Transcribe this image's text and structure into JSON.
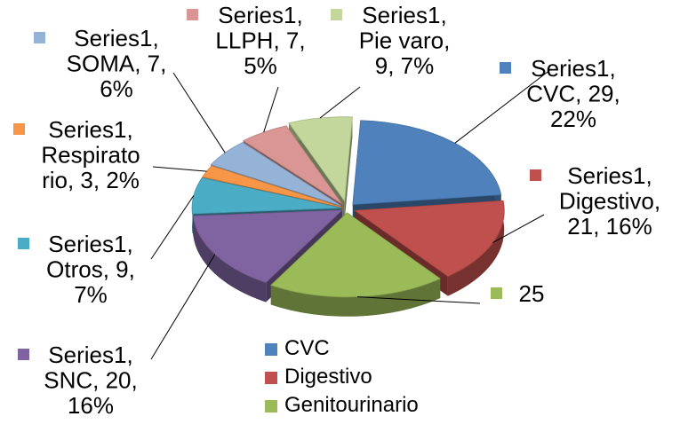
{
  "chart_data": {
    "type": "pie",
    "title": "",
    "series_name": "Series1",
    "slices": [
      {
        "category": "CVC",
        "value": 29,
        "percent": "22%",
        "color": "#4f81bd",
        "label_lines": [
          "Series1,",
          "CVC, 29,",
          "22%"
        ]
      },
      {
        "category": "Digestivo",
        "value": 21,
        "percent": "16%",
        "color": "#c0504d",
        "label_lines": [
          "Series1,",
          "Digestivo,",
          "21, 16%"
        ]
      },
      {
        "category": "Genitourinario",
        "value": 25,
        "percent": "",
        "color": "#9bbb59",
        "label_lines": [
          "25"
        ]
      },
      {
        "category": "SNC",
        "value": 20,
        "percent": "16%",
        "color": "#8064a2",
        "label_lines": [
          "Series1,",
          "SNC, 20,",
          "16%"
        ]
      },
      {
        "category": "Otros",
        "value": 9,
        "percent": "7%",
        "color": "#4bacc6",
        "label_lines": [
          "Series1,",
          "Otros, 9,",
          "7%"
        ]
      },
      {
        "category": "Respiratorio",
        "value": 3,
        "percent": "2%",
        "color": "#f79646",
        "label_lines": [
          "Series1,",
          "Respirato",
          "rio, 3, 2%"
        ]
      },
      {
        "category": "SOMA",
        "value": 7,
        "percent": "6%",
        "color": "#95b3d7",
        "label_lines": [
          "Series1,",
          "SOMA, 7,",
          "6%"
        ]
      },
      {
        "category": "LLPH",
        "value": 7,
        "percent": "5%",
        "color": "#d99694",
        "label_lines": [
          "Series1,",
          "LLPH, 7,",
          "5%"
        ]
      },
      {
        "category": "Pie varo",
        "value": 9,
        "percent": "7%",
        "color": "#c3d69b",
        "label_lines": [
          "Series1,",
          "Pie varo,",
          "9, 7%"
        ]
      }
    ],
    "legend": {
      "placement": "bottom-right",
      "entries": [
        {
          "label": "CVC",
          "color": "#4f81bd"
        },
        {
          "label": "Digestivo",
          "color": "#c0504d"
        },
        {
          "label": "Genitourinario",
          "color": "#9bbb59"
        }
      ]
    },
    "style": "3d-exploded"
  }
}
